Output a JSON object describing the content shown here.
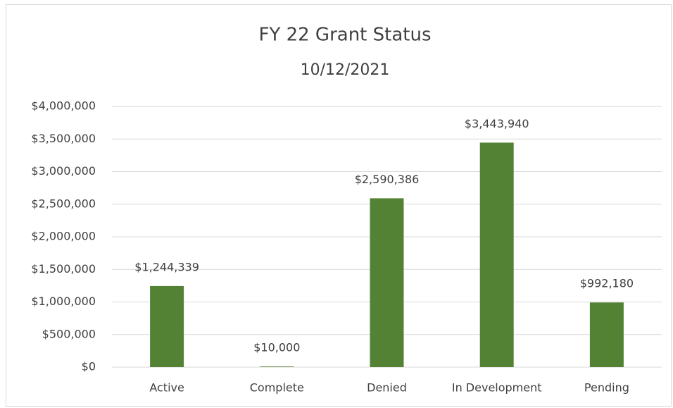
{
  "chart_data": {
    "type": "bar",
    "title": "FY 22 Grant Status",
    "subtitle": "10/12/2021",
    "categories": [
      "Active",
      "Complete",
      "Denied",
      "In Development",
      "Pending"
    ],
    "values": [
      1244339,
      10000,
      2590386,
      3443940,
      992180
    ],
    "value_labels": [
      "$1,244,339",
      "$10,000",
      "$2,590,386",
      "$3,443,940",
      "$992,180"
    ],
    "color": "#548235",
    "ylim": [
      0,
      4000000
    ],
    "yticks": [
      {
        "value": 0,
        "label": "$0"
      },
      {
        "value": 500000,
        "label": "$500,000"
      },
      {
        "value": 1000000,
        "label": "$1,000,000"
      },
      {
        "value": 1500000,
        "label": "$1,500,000"
      },
      {
        "value": 2000000,
        "label": "$2,000,000"
      },
      {
        "value": 2500000,
        "label": "$2,500,000"
      },
      {
        "value": 3000000,
        "label": "$3,000,000"
      },
      {
        "value": 3500000,
        "label": "$3,500,000"
      },
      {
        "value": 4000000,
        "label": "$4,000,000"
      }
    ],
    "grid": true
  }
}
